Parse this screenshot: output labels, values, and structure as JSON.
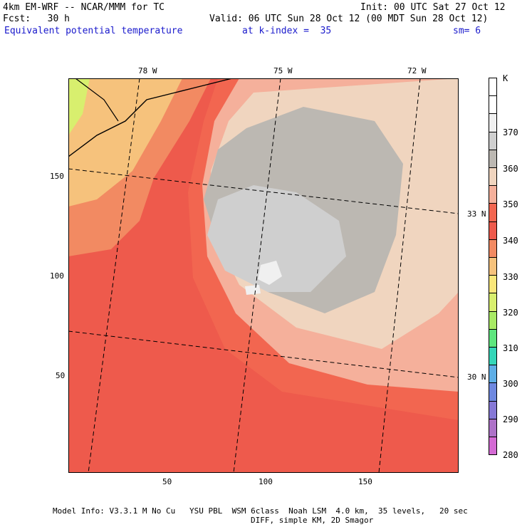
{
  "header": {
    "model": "4km EM-WRF -- NCAR/MMM for TC",
    "init": "Init: 00 UTC Sat 27 Oct 12",
    "fcst": "Fcst:   30 h",
    "valid": "Valid: 06 UTC Sun 28 Oct 12 (00 MDT Sun 28 Oct 12)",
    "field": "Equivalent potential temperature",
    "level": "at k-index =  35",
    "smoothing": "sm= 6"
  },
  "map": {
    "lon_labels": [
      "78 W",
      "75 W",
      "72 W"
    ],
    "lat_labels": [
      "33 N",
      "30 N"
    ],
    "y_ticks": [
      "150",
      "100",
      "50"
    ],
    "x_ticks": [
      "50",
      "100",
      "150"
    ]
  },
  "colorbar": {
    "unit": "K",
    "labels": [
      "370",
      "360",
      "350",
      "340",
      "330",
      "320",
      "310",
      "300",
      "290",
      "280"
    ],
    "colors": [
      "#ffffff",
      "#ffffff",
      "#f0f0f0",
      "#cfcfcf",
      "#bcb8b2",
      "#f0d5bf",
      "#f5b09b",
      "#f26650",
      "#ee5a4c",
      "#f28a62",
      "#f6c27c",
      "#fae77a",
      "#d8ef6e",
      "#a8ea64",
      "#5ee67e",
      "#34d6b8",
      "#5eaee6",
      "#6e88e0",
      "#8678d6",
      "#ae72c8",
      "#d46ad4"
    ]
  },
  "footer": {
    "line1": "Model Info: V3.3.1 M No Cu   YSU PBL  WSM 6class  Noah LSM  4.0 km,  35 levels,   20 sec",
    "line2": "DIFF, simple KM, 2D Smagor"
  }
}
